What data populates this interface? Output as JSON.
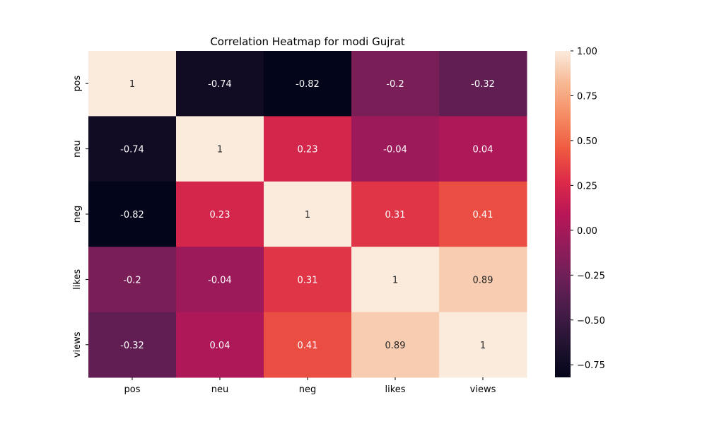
{
  "chart_data": {
    "type": "heatmap",
    "title": "Correlation Heatmap for modi Gujrat",
    "xlabel": "",
    "ylabel": "",
    "x_categories": [
      "pos",
      "neu",
      "neg",
      "likes",
      "views"
    ],
    "y_categories": [
      "pos",
      "neu",
      "neg",
      "likes",
      "views"
    ],
    "values": [
      [
        1,
        -0.74,
        -0.82,
        -0.2,
        -0.32
      ],
      [
        -0.74,
        1,
        0.23,
        -0.04,
        0.04
      ],
      [
        -0.82,
        0.23,
        1,
        0.31,
        0.41
      ],
      [
        -0.2,
        -0.04,
        0.31,
        1,
        0.89
      ],
      [
        -0.32,
        0.04,
        0.41,
        0.89,
        1
      ]
    ],
    "annotations": true,
    "colormap": "rocket",
    "vmin": -0.82,
    "vmax": 1.0,
    "colorbar_ticks": [
      {
        "value": 1.0,
        "label": "1.00"
      },
      {
        "value": 0.75,
        "label": "0.75"
      },
      {
        "value": 0.5,
        "label": "0.50"
      },
      {
        "value": 0.25,
        "label": "0.25"
      },
      {
        "value": 0.0,
        "label": "0.00"
      },
      {
        "value": -0.25,
        "label": "−0.25"
      },
      {
        "value": -0.5,
        "label": "−0.50"
      },
      {
        "value": -0.75,
        "label": "−0.75"
      }
    ],
    "grid": false,
    "legend": "colorbar-right"
  }
}
